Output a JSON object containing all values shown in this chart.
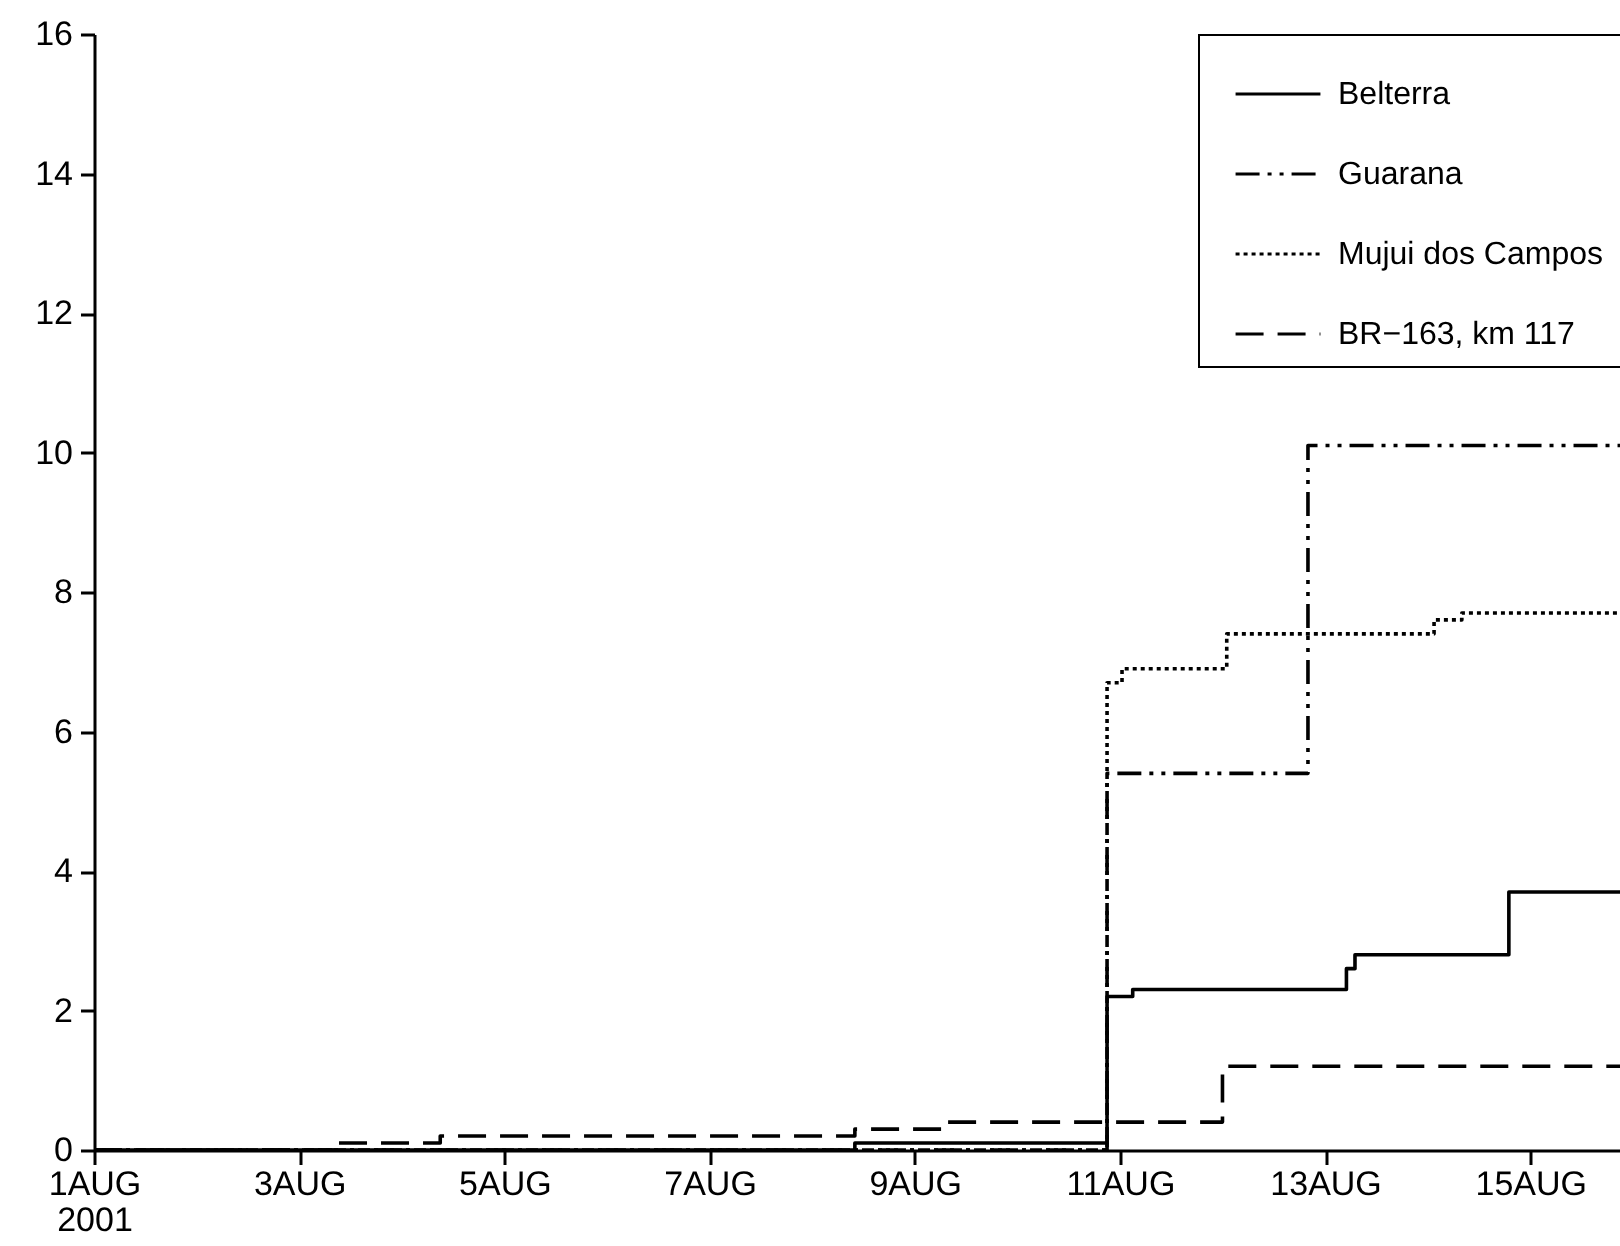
{
  "chart_data": {
    "type": "step",
    "xlim": [
      "2001-08-01",
      "2001-08-15T21:00"
    ],
    "xticks": [
      {
        "value": "2001-08-01",
        "label": "1AUG\n2001"
      },
      {
        "value": "2001-08-03",
        "label": "3AUG"
      },
      {
        "value": "2001-08-05",
        "label": "5AUG"
      },
      {
        "value": "2001-08-07",
        "label": "7AUG"
      },
      {
        "value": "2001-08-09",
        "label": "9AUG"
      },
      {
        "value": "2001-08-11",
        "label": "11AUG"
      },
      {
        "value": "2001-08-13",
        "label": "13AUG"
      },
      {
        "value": "2001-08-15",
        "label": "15AUG"
      }
    ],
    "ylim": [
      0,
      16
    ],
    "yticks": [
      0,
      2,
      4,
      6,
      8,
      10,
      12,
      14,
      16
    ],
    "grid": false,
    "legend": "top right",
    "series": [
      {
        "name": "Belterra",
        "color": "#000000",
        "line_style": "solid",
        "x": [
          "2001-08-01",
          "2001-08-08T10:00",
          "2001-08-10T21:00",
          "2001-08-11T03:00",
          "2001-08-13T05:00",
          "2001-08-13T07:00",
          "2001-08-14T19:00",
          "2001-08-15T21:00"
        ],
        "values": [
          0,
          0.1,
          2.2,
          2.3,
          2.6,
          2.8,
          3.7,
          3.7
        ]
      },
      {
        "name": "Guarana",
        "color": "#000000",
        "line_style": "dashdotdot",
        "x": [
          "2001-08-01",
          "2001-08-10T21:00",
          "2001-08-12T20:00",
          "2001-08-15T21:00"
        ],
        "values": [
          0,
          5.4,
          10.1,
          10.1
        ]
      },
      {
        "name": "Mujui dos Campos",
        "color": "#000000",
        "line_style": "dotted",
        "x": [
          "2001-08-01",
          "2001-08-10T21:00",
          "2001-08-11T00:30",
          "2001-08-12T01:00",
          "2001-08-14T01:30",
          "2001-08-14T08:00",
          "2001-08-15T21:00"
        ],
        "values": [
          0,
          6.7,
          6.9,
          7.4,
          7.6,
          7.7,
          7.7
        ]
      },
      {
        "name": "BR−163, km 117",
        "color": "#000000",
        "line_style": "dashed",
        "x": [
          "2001-08-01",
          "2001-08-03T09:00",
          "2001-08-04T09:00",
          "2001-08-08T10:00",
          "2001-08-09T07:00",
          "2001-08-12T00:00",
          "2001-08-15T21:00"
        ],
        "values": [
          0,
          0.1,
          0.2,
          0.3,
          0.4,
          1.2,
          1.2
        ]
      }
    ]
  }
}
